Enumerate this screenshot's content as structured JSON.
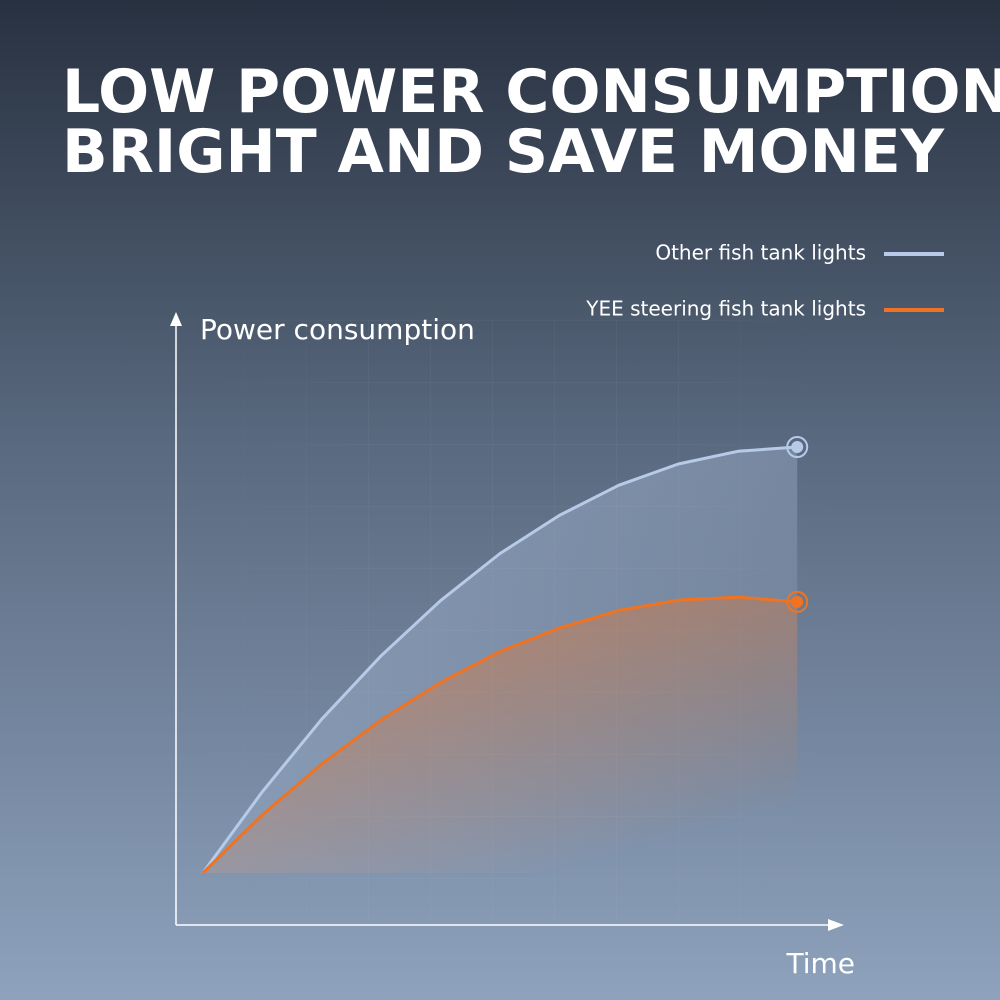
{
  "chart_data": {
    "type": "line",
    "title": [
      "LOW POWER CONSUMPTION",
      "BRIGHT AND SAVE MONEY"
    ],
    "y_label": "Power consumption",
    "x_label": "Time",
    "x": [
      0,
      1,
      2,
      3,
      4,
      5,
      6,
      7,
      8,
      9,
      10
    ],
    "xlim": [
      -0.45,
      10.72
    ],
    "ylim": [
      0,
      100
    ],
    "legend": "top-right",
    "series": [
      {
        "name": "Other fish tank lights",
        "color": "#b7cbe8",
        "values": [
          8.6,
          22.0,
          34.0,
          44.5,
          53.6,
          61.4,
          67.7,
          72.7,
          76.2,
          78.3,
          79.0
        ]
      },
      {
        "name": "YEE steering fish tank lights",
        "color": "#f07322",
        "values": [
          8.6,
          18.2,
          26.6,
          33.9,
          40.1,
          45.2,
          49.1,
          52.0,
          53.7,
          54.2,
          53.4
        ]
      }
    ]
  }
}
